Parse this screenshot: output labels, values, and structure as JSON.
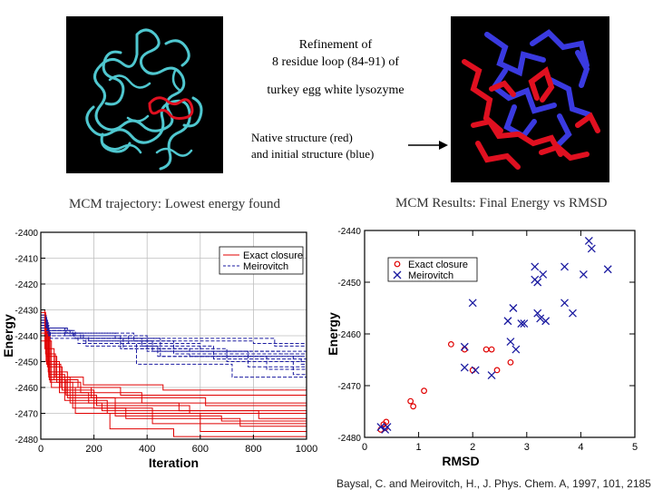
{
  "header": {
    "title_lines": [
      "Refinement of",
      "8 residue loop (84-91) of",
      "turkey egg white lysozyme"
    ],
    "arrow_label_lines": [
      "Native structure (red)",
      "and initial structure (blue)"
    ]
  },
  "images": {
    "left": {
      "name": "protein-backbone-render",
      "colors": {
        "backbone": "#4fc7cf",
        "loop": "#e01020",
        "background": "#000000"
      }
    },
    "right": {
      "name": "loop-stick-render",
      "colors": {
        "native": "#e01020",
        "initial": "#3a3ae0",
        "background": "#000000"
      }
    }
  },
  "citation": "Baysal, C. and Meirovitch, H., J. Phys. Chem. A, 1997, 101, 2185",
  "colors": {
    "exact": "#e00000",
    "meirovitch": "#1a1aa0",
    "grid": "#bfbfbf"
  },
  "chart_data": [
    {
      "type": "line",
      "title": "MCM trajectory: Lowest energy found",
      "xlabel": "Iteration",
      "ylabel": "Energy",
      "xlim": [
        0,
        1000
      ],
      "ylim": [
        -2480,
        -2400
      ],
      "xticks": [
        0,
        200,
        400,
        600,
        800,
        1000
      ],
      "yticks": [
        -2400,
        -2410,
        -2420,
        -2430,
        -2440,
        -2450,
        -2460,
        -2470,
        -2480
      ],
      "grid": true,
      "legend": {
        "placement": "top-right",
        "entries": [
          "Exact closure",
          "Meirovitch"
        ]
      },
      "series": [
        {
          "name": "Exact closure",
          "style": "solid",
          "color": "#e00000",
          "runs": [
            [
              [
                0,
                -2432
              ],
              [
                20,
                -2448
              ],
              [
                60,
                -2458
              ],
              [
                150,
                -2462
              ],
              [
                380,
                -2466
              ],
              [
                1000,
                -2466
              ]
            ],
            [
              [
                0,
                -2435
              ],
              [
                25,
                -2452
              ],
              [
                80,
                -2461
              ],
              [
                200,
                -2468
              ],
              [
                420,
                -2474
              ],
              [
                1000,
                -2474
              ]
            ],
            [
              [
                0,
                -2438
              ],
              [
                30,
                -2455
              ],
              [
                90,
                -2465
              ],
              [
                250,
                -2470
              ],
              [
                600,
                -2477
              ],
              [
                1000,
                -2477
              ]
            ],
            [
              [
                0,
                -2430
              ],
              [
                15,
                -2445
              ],
              [
                50,
                -2457
              ],
              [
                140,
                -2460
              ],
              [
                300,
                -2463
              ],
              [
                1000,
                -2463
              ]
            ],
            [
              [
                0,
                -2440
              ],
              [
                35,
                -2458
              ],
              [
                120,
                -2468
              ],
              [
                320,
                -2472
              ],
              [
                750,
                -2475
              ],
              [
                1000,
                -2475
              ]
            ],
            [
              [
                0,
                -2433
              ],
              [
                20,
                -2450
              ],
              [
                70,
                -2462
              ],
              [
                180,
                -2466
              ],
              [
                520,
                -2469
              ],
              [
                1000,
                -2469
              ]
            ],
            [
              [
                0,
                -2436
              ],
              [
                28,
                -2454
              ],
              [
                100,
                -2464
              ],
              [
                280,
                -2471
              ],
              [
                680,
                -2473
              ],
              [
                1000,
                -2473
              ]
            ],
            [
              [
                0,
                -2442
              ],
              [
                40,
                -2460
              ],
              [
                130,
                -2470
              ],
              [
                260,
                -2476
              ],
              [
                500,
                -2479
              ],
              [
                1000,
                -2479
              ]
            ],
            [
              [
                0,
                -2431
              ],
              [
                18,
                -2447
              ],
              [
                55,
                -2456
              ],
              [
                160,
                -2459
              ],
              [
                460,
                -2461
              ],
              [
                1000,
                -2461
              ]
            ],
            [
              [
                0,
                -2437
              ],
              [
                30,
                -2456
              ],
              [
                110,
                -2466
              ],
              [
                230,
                -2469
              ],
              [
                820,
                -2472
              ],
              [
                1000,
                -2472
              ]
            ],
            [
              [
                0,
                -2434
              ],
              [
                22,
                -2451
              ],
              [
                75,
                -2460
              ],
              [
                190,
                -2464
              ],
              [
                620,
                -2467
              ],
              [
                1000,
                -2467
              ]
            ],
            [
              [
                0,
                -2439
              ],
              [
                32,
                -2457
              ],
              [
                95,
                -2463
              ],
              [
                210,
                -2467
              ],
              [
                560,
                -2470
              ],
              [
                1000,
                -2470
              ]
            ]
          ]
        },
        {
          "name": "Meirovitch",
          "style": "dashed",
          "color": "#1a1aa0",
          "runs": [
            [
              [
                0,
                -2432
              ],
              [
                20,
                -2437
              ],
              [
                100,
                -2439
              ],
              [
                350,
                -2442
              ],
              [
                800,
                -2443
              ],
              [
                1000,
                -2443
              ]
            ],
            [
              [
                0,
                -2434
              ],
              [
                25,
                -2438
              ],
              [
                120,
                -2440
              ],
              [
                400,
                -2446
              ],
              [
                900,
                -2447
              ],
              [
                1000,
                -2447
              ]
            ],
            [
              [
                0,
                -2436
              ],
              [
                30,
                -2439
              ],
              [
                150,
                -2441
              ],
              [
                450,
                -2448
              ],
              [
                850,
                -2453
              ],
              [
                1000,
                -2453
              ]
            ],
            [
              [
                0,
                -2433
              ],
              [
                22,
                -2437
              ],
              [
                90,
                -2440
              ],
              [
                300,
                -2445
              ],
              [
                700,
                -2450
              ],
              [
                1000,
                -2450
              ]
            ],
            [
              [
                0,
                -2438
              ],
              [
                35,
                -2440
              ],
              [
                180,
                -2442
              ],
              [
                500,
                -2447
              ],
              [
                950,
                -2455
              ],
              [
                1000,
                -2455
              ]
            ],
            [
              [
                0,
                -2435
              ],
              [
                28,
                -2438
              ],
              [
                130,
                -2441
              ],
              [
                380,
                -2444
              ],
              [
                650,
                -2449
              ],
              [
                1000,
                -2449
              ]
            ],
            [
              [
                0,
                -2437
              ],
              [
                32,
                -2439
              ],
              [
                160,
                -2442
              ],
              [
                420,
                -2446
              ],
              [
                780,
                -2452
              ],
              [
                1000,
                -2452
              ]
            ],
            [
              [
                0,
                -2434
              ],
              [
                24,
                -2438
              ],
              [
                110,
                -2440
              ],
              [
                330,
                -2443
              ],
              [
                600,
                -2446
              ],
              [
                1000,
                -2446
              ]
            ],
            [
              [
                0,
                -2436
              ],
              [
                30,
                -2440
              ],
              [
                140,
                -2443
              ],
              [
                360,
                -2451
              ],
              [
                720,
                -2456
              ],
              [
                1000,
                -2456
              ]
            ],
            [
              [
                0,
                -2433
              ],
              [
                20,
                -2437
              ],
              [
                95,
                -2439
              ],
              [
                280,
                -2441
              ],
              [
                880,
                -2444
              ],
              [
                1000,
                -2444
              ]
            ],
            [
              [
                0,
                -2438
              ],
              [
                36,
                -2441
              ],
              [
                170,
                -2444
              ],
              [
                440,
                -2448
              ],
              [
                980,
                -2451
              ],
              [
                1000,
                -2451
              ]
            ],
            [
              [
                0,
                -2435
              ],
              [
                26,
                -2439
              ],
              [
                125,
                -2441
              ],
              [
                310,
                -2445
              ],
              [
                560,
                -2448
              ],
              [
                1000,
                -2448
              ]
            ]
          ]
        }
      ]
    },
    {
      "type": "scatter",
      "title": "MCM Results: Final Energy vs RMSD",
      "xlabel": "RMSD",
      "ylabel": "Energy",
      "xlim": [
        0,
        5
      ],
      "ylim": [
        -2480,
        -2440
      ],
      "xticks": [
        0,
        1,
        2,
        3,
        4,
        5
      ],
      "yticks": [
        -2440,
        -2450,
        -2460,
        -2470,
        -2480
      ],
      "grid": false,
      "legend": {
        "placement": "top-left",
        "entries": [
          "Exact closure",
          "Meirovitch"
        ]
      },
      "series": [
        {
          "name": "Exact closure",
          "marker": "circle",
          "color": "#e00000",
          "points": [
            [
              0.35,
              -2477.5
            ],
            [
              0.4,
              -2477
            ],
            [
              0.3,
              -2478.5
            ],
            [
              0.38,
              -2478.2
            ],
            [
              0.85,
              -2473
            ],
            [
              0.9,
              -2474
            ],
            [
              1.1,
              -2471
            ],
            [
              1.6,
              -2462
            ],
            [
              1.85,
              -2463
            ],
            [
              2.0,
              -2467
            ],
            [
              2.25,
              -2463
            ],
            [
              2.35,
              -2463
            ],
            [
              2.45,
              -2467
            ],
            [
              2.7,
              -2465.5
            ]
          ]
        },
        {
          "name": "Meirovitch",
          "marker": "x",
          "color": "#1a1aa0",
          "points": [
            [
              0.3,
              -2478
            ],
            [
              0.38,
              -2478.5
            ],
            [
              0.42,
              -2478
            ],
            [
              1.85,
              -2462.5
            ],
            [
              1.85,
              -2466.5
            ],
            [
              2.0,
              -2454
            ],
            [
              2.05,
              -2467
            ],
            [
              2.35,
              -2468
            ],
            [
              2.65,
              -2457.5
            ],
            [
              2.7,
              -2461.5
            ],
            [
              2.75,
              -2455
            ],
            [
              2.8,
              -2463
            ],
            [
              2.9,
              -2458
            ],
            [
              2.95,
              -2458
            ],
            [
              3.15,
              -2447
            ],
            [
              3.15,
              -2449.5
            ],
            [
              3.2,
              -2450
            ],
            [
              3.2,
              -2456
            ],
            [
              3.25,
              -2457
            ],
            [
              3.3,
              -2448.5
            ],
            [
              3.35,
              -2457.5
            ],
            [
              3.7,
              -2447
            ],
            [
              3.7,
              -2454
            ],
            [
              3.85,
              -2456
            ],
            [
              4.05,
              -2448.5
            ],
            [
              4.15,
              -2442
            ],
            [
              4.2,
              -2443.5
            ],
            [
              4.5,
              -2447.5
            ]
          ]
        }
      ]
    }
  ]
}
